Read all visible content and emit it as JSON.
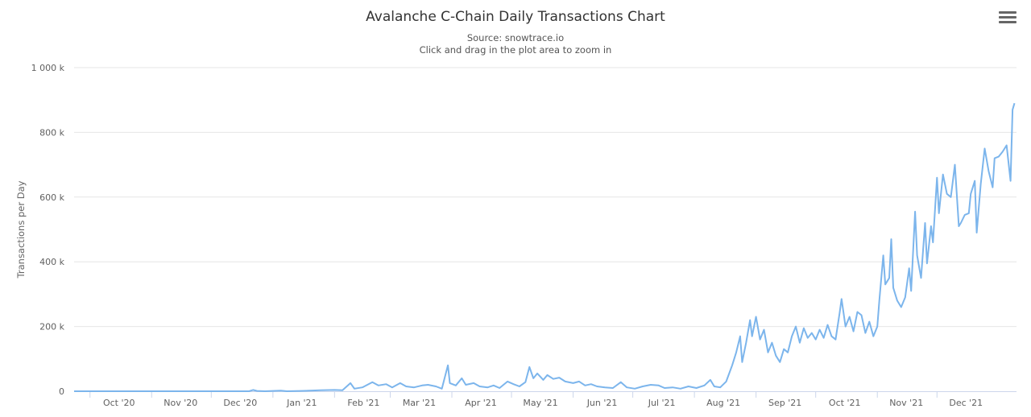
{
  "header": {
    "title": "Avalanche C-Chain Daily Transactions Chart",
    "source": "Source: snowtrace.io",
    "hint": "Click and drag in the plot area to zoom in"
  },
  "menu": {
    "icon": "hamburger-menu-icon"
  },
  "colors": {
    "line": "#7cb5ec",
    "grid": "#e6e6e6",
    "text": "#333333"
  },
  "chart_data": {
    "type": "line",
    "title": "Avalanche C-Chain Daily Transactions Chart",
    "subtitle": "Source: snowtrace.io",
    "ylabel": "Transactions per Day",
    "xlabel": "",
    "ylim": [
      0,
      1000000
    ],
    "yticks": [
      {
        "value": 0,
        "label": "0"
      },
      {
        "value": 200000,
        "label": "200 k"
      },
      {
        "value": 400000,
        "label": "400 k"
      },
      {
        "value": 600000,
        "label": "600 k"
      },
      {
        "value": 800000,
        "label": "800 k"
      },
      {
        "value": 1000000,
        "label": "1 000 k"
      }
    ],
    "xticks": [
      {
        "date": "2020-10-01",
        "label": "Oct '20"
      },
      {
        "date": "2020-11-01",
        "label": "Nov '20"
      },
      {
        "date": "2020-12-01",
        "label": "Dec '20"
      },
      {
        "date": "2021-01-01",
        "label": "Jan '21"
      },
      {
        "date": "2021-02-01",
        "label": "Feb '21"
      },
      {
        "date": "2021-03-01",
        "label": "Mar '21"
      },
      {
        "date": "2021-04-01",
        "label": "Apr '21"
      },
      {
        "date": "2021-05-01",
        "label": "May '21"
      },
      {
        "date": "2021-06-01",
        "label": "Jun '21"
      },
      {
        "date": "2021-07-01",
        "label": "Jul '21"
      },
      {
        "date": "2021-08-01",
        "label": "Aug '21"
      },
      {
        "date": "2021-09-01",
        "label": "Sep '21"
      },
      {
        "date": "2021-10-01",
        "label": "Oct '21"
      },
      {
        "date": "2021-11-01",
        "label": "Nov '21"
      },
      {
        "date": "2021-12-01",
        "label": "Dec '21"
      }
    ],
    "grid": true,
    "legend": "none",
    "series": [
      {
        "points": [
          [
            "2020-09-23",
            0
          ],
          [
            "2020-10-10",
            0
          ],
          [
            "2020-11-01",
            0
          ],
          [
            "2020-12-01",
            0
          ],
          [
            "2020-12-20",
            0
          ],
          [
            "2020-12-22",
            4000
          ],
          [
            "2020-12-24",
            1000
          ],
          [
            "2020-12-28",
            0
          ],
          [
            "2021-01-05",
            2000
          ],
          [
            "2021-01-08",
            0
          ],
          [
            "2021-01-15",
            1000
          ],
          [
            "2021-01-25",
            3000
          ],
          [
            "2021-02-01",
            4000
          ],
          [
            "2021-02-05",
            3000
          ],
          [
            "2021-02-09",
            25000
          ],
          [
            "2021-02-11",
            8000
          ],
          [
            "2021-02-15",
            12000
          ],
          [
            "2021-02-20",
            28000
          ],
          [
            "2021-02-23",
            18000
          ],
          [
            "2021-02-27",
            22000
          ],
          [
            "2021-03-02",
            12000
          ],
          [
            "2021-03-06",
            25000
          ],
          [
            "2021-03-09",
            15000
          ],
          [
            "2021-03-13",
            12000
          ],
          [
            "2021-03-17",
            18000
          ],
          [
            "2021-03-20",
            20000
          ],
          [
            "2021-03-24",
            15000
          ],
          [
            "2021-03-27",
            8000
          ],
          [
            "2021-03-30",
            80000
          ],
          [
            "2021-03-31",
            25000
          ],
          [
            "2021-04-03",
            18000
          ],
          [
            "2021-04-06",
            40000
          ],
          [
            "2021-04-08",
            20000
          ],
          [
            "2021-04-12",
            25000
          ],
          [
            "2021-04-15",
            15000
          ],
          [
            "2021-04-19",
            12000
          ],
          [
            "2021-04-22",
            18000
          ],
          [
            "2021-04-25",
            10000
          ],
          [
            "2021-04-29",
            30000
          ],
          [
            "2021-05-02",
            22000
          ],
          [
            "2021-05-05",
            15000
          ],
          [
            "2021-05-08",
            28000
          ],
          [
            "2021-05-10",
            75000
          ],
          [
            "2021-05-12",
            40000
          ],
          [
            "2021-05-14",
            55000
          ],
          [
            "2021-05-17",
            35000
          ],
          [
            "2021-05-19",
            50000
          ],
          [
            "2021-05-22",
            38000
          ],
          [
            "2021-05-25",
            42000
          ],
          [
            "2021-05-28",
            30000
          ],
          [
            "2021-06-01",
            25000
          ],
          [
            "2021-06-04",
            30000
          ],
          [
            "2021-06-07",
            18000
          ],
          [
            "2021-06-10",
            22000
          ],
          [
            "2021-06-13",
            15000
          ],
          [
            "2021-06-17",
            12000
          ],
          [
            "2021-06-21",
            10000
          ],
          [
            "2021-06-25",
            28000
          ],
          [
            "2021-06-28",
            12000
          ],
          [
            "2021-07-02",
            8000
          ],
          [
            "2021-07-06",
            15000
          ],
          [
            "2021-07-10",
            20000
          ],
          [
            "2021-07-14",
            18000
          ],
          [
            "2021-07-17",
            10000
          ],
          [
            "2021-07-21",
            12000
          ],
          [
            "2021-07-25",
            8000
          ],
          [
            "2021-07-29",
            15000
          ],
          [
            "2021-08-02",
            10000
          ],
          [
            "2021-08-06",
            18000
          ],
          [
            "2021-08-09",
            35000
          ],
          [
            "2021-08-11",
            15000
          ],
          [
            "2021-08-14",
            12000
          ],
          [
            "2021-08-17",
            30000
          ],
          [
            "2021-08-20",
            80000
          ],
          [
            "2021-08-22",
            120000
          ],
          [
            "2021-08-24",
            170000
          ],
          [
            "2021-08-25",
            90000
          ],
          [
            "2021-08-27",
            150000
          ],
          [
            "2021-08-29",
            220000
          ],
          [
            "2021-08-30",
            170000
          ],
          [
            "2021-09-01",
            230000
          ],
          [
            "2021-09-03",
            160000
          ],
          [
            "2021-09-05",
            190000
          ],
          [
            "2021-09-07",
            120000
          ],
          [
            "2021-09-09",
            150000
          ],
          [
            "2021-09-11",
            110000
          ],
          [
            "2021-09-13",
            90000
          ],
          [
            "2021-09-15",
            130000
          ],
          [
            "2021-09-17",
            120000
          ],
          [
            "2021-09-19",
            170000
          ],
          [
            "2021-09-21",
            200000
          ],
          [
            "2021-09-23",
            150000
          ],
          [
            "2021-09-25",
            195000
          ],
          [
            "2021-09-27",
            165000
          ],
          [
            "2021-09-29",
            180000
          ],
          [
            "2021-10-01",
            160000
          ],
          [
            "2021-10-03",
            190000
          ],
          [
            "2021-10-05",
            165000
          ],
          [
            "2021-10-07",
            205000
          ],
          [
            "2021-10-09",
            170000
          ],
          [
            "2021-10-11",
            160000
          ],
          [
            "2021-10-13",
            240000
          ],
          [
            "2021-10-14",
            285000
          ],
          [
            "2021-10-16",
            200000
          ],
          [
            "2021-10-18",
            230000
          ],
          [
            "2021-10-20",
            185000
          ],
          [
            "2021-10-22",
            245000
          ],
          [
            "2021-10-24",
            235000
          ],
          [
            "2021-10-26",
            180000
          ],
          [
            "2021-10-28",
            215000
          ],
          [
            "2021-10-30",
            170000
          ],
          [
            "2021-11-01",
            200000
          ],
          [
            "2021-11-02",
            280000
          ],
          [
            "2021-11-04",
            420000
          ],
          [
            "2021-11-05",
            330000
          ],
          [
            "2021-11-07",
            350000
          ],
          [
            "2021-11-08",
            470000
          ],
          [
            "2021-11-09",
            320000
          ],
          [
            "2021-11-11",
            280000
          ],
          [
            "2021-11-13",
            260000
          ],
          [
            "2021-11-15",
            290000
          ],
          [
            "2021-11-17",
            380000
          ],
          [
            "2021-11-18",
            310000
          ],
          [
            "2021-11-20",
            555000
          ],
          [
            "2021-11-21",
            420000
          ],
          [
            "2021-11-23",
            350000
          ],
          [
            "2021-11-25",
            520000
          ],
          [
            "2021-11-26",
            395000
          ],
          [
            "2021-11-28",
            510000
          ],
          [
            "2021-11-29",
            460000
          ],
          [
            "2021-12-01",
            660000
          ],
          [
            "2021-12-02",
            550000
          ],
          [
            "2021-12-04",
            670000
          ],
          [
            "2021-12-06",
            610000
          ],
          [
            "2021-12-08",
            600000
          ],
          [
            "2021-12-10",
            700000
          ],
          [
            "2021-12-12",
            510000
          ],
          [
            "2021-12-13",
            520000
          ],
          [
            "2021-12-15",
            545000
          ],
          [
            "2021-12-17",
            550000
          ],
          [
            "2021-12-18",
            610000
          ],
          [
            "2021-12-20",
            650000
          ],
          [
            "2021-12-21",
            490000
          ],
          [
            "2021-12-23",
            640000
          ],
          [
            "2021-12-25",
            750000
          ],
          [
            "2021-12-27",
            680000
          ],
          [
            "2021-12-29",
            630000
          ],
          [
            "2021-12-30",
            720000
          ],
          [
            "2022-01-01",
            725000
          ],
          [
            "2022-01-03",
            740000
          ],
          [
            "2022-01-05",
            760000
          ],
          [
            "2022-01-07",
            650000
          ],
          [
            "2022-01-08",
            870000
          ],
          [
            "2022-01-09",
            890000
          ]
        ]
      }
    ]
  }
}
